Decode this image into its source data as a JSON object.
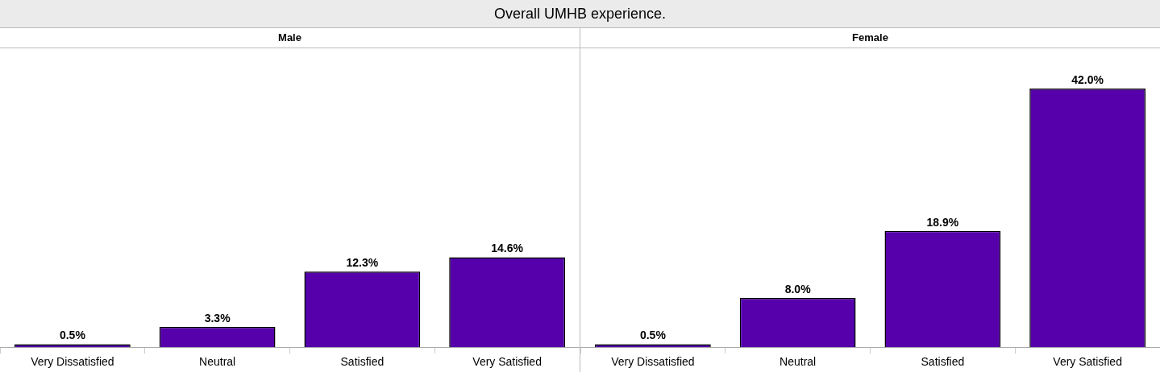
{
  "chart_data": [
    {
      "type": "other",
      "title": "Overall UMHB experience."
    },
    {
      "type": "bar",
      "title": "Male",
      "categories": [
        "Very Dissatisfied",
        "Neutral",
        "Satisfied",
        "Very Satisfied"
      ],
      "values": [
        0.5,
        3.3,
        12.3,
        14.6
      ],
      "value_labels": [
        "0.5%",
        "3.3%",
        "12.3%",
        "14.6%"
      ],
      "color": "#5500aa",
      "tick_labels": "x",
      "grid": false,
      "legend": false
    },
    {
      "type": "bar",
      "title": "Female",
      "categories": [
        "Very Dissatisfied",
        "Neutral",
        "Satisfied",
        "Very Satisfied"
      ],
      "values": [
        0.5,
        8.0,
        18.9,
        42.0
      ],
      "value_labels": [
        "0.5%",
        "8.0%",
        "18.9%",
        "42.0%"
      ],
      "color": "#5500aa",
      "tick_labels": "x",
      "grid": false,
      "legend": false
    }
  ]
}
